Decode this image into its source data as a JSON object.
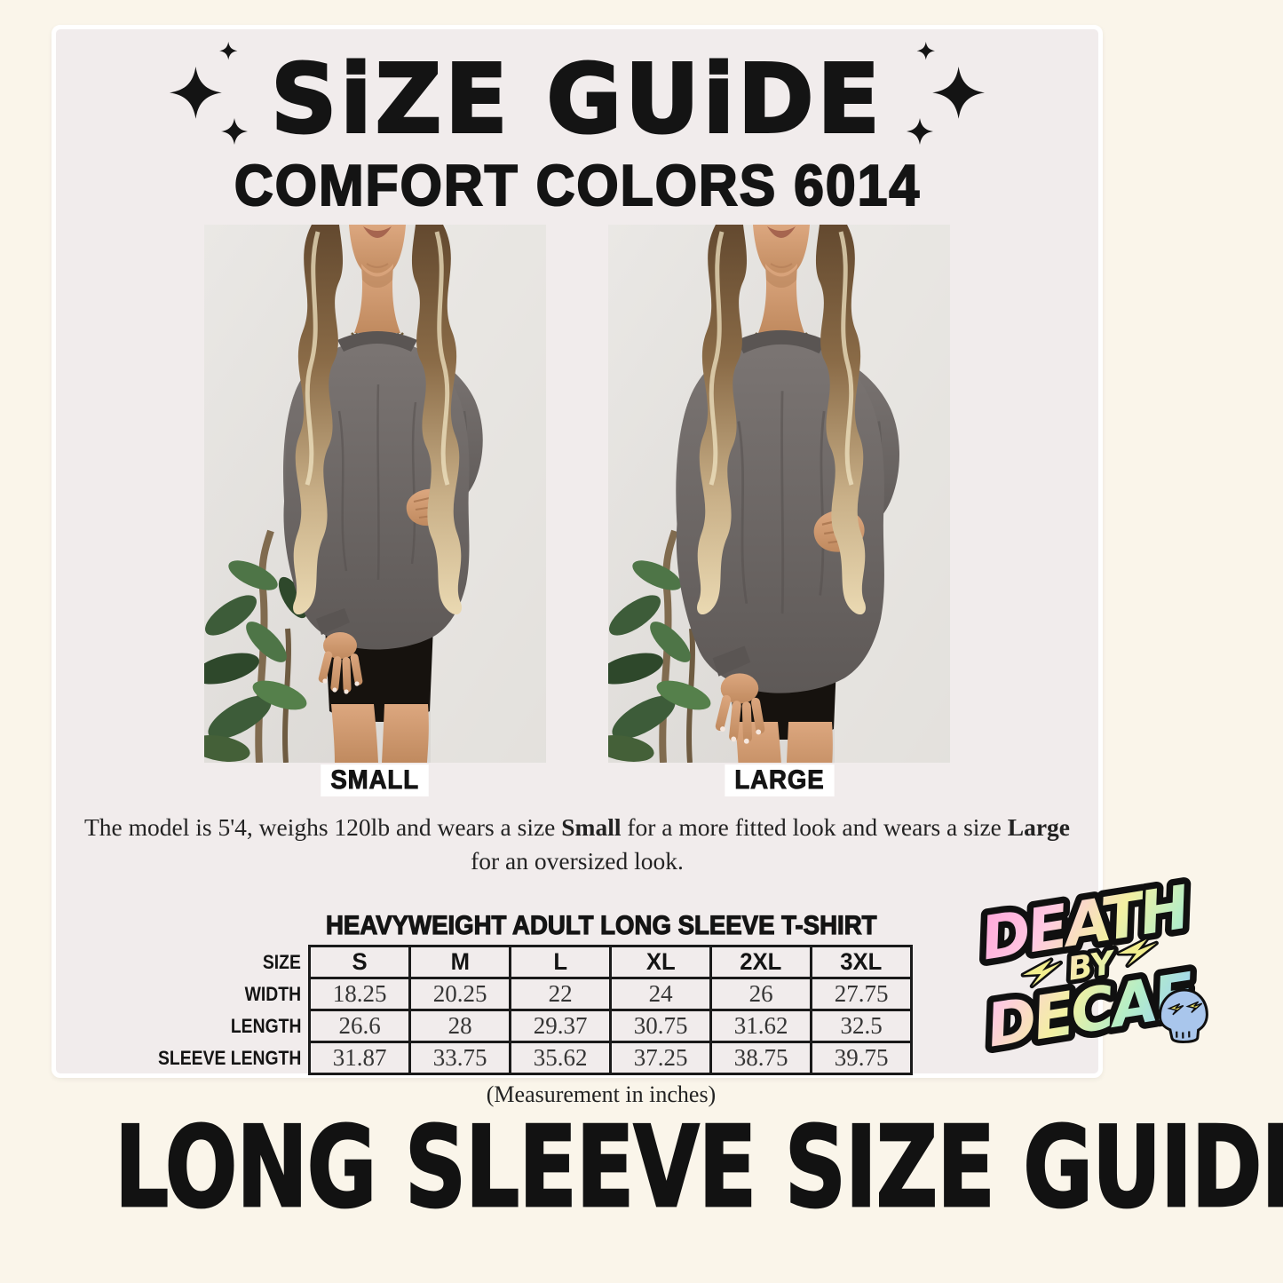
{
  "header": {
    "title": "SiZE GUiDE",
    "subtitle": "COMFORT COLORS 6014"
  },
  "photos": [
    {
      "label": "SMALL"
    },
    {
      "label": "LARGE"
    }
  ],
  "model_note": {
    "part1": "The model is 5'4, weighs 120lb and wears a size ",
    "bold_small": "Small",
    "part2": " for a more fitted look and wears a size ",
    "bold_large": "Large",
    "part3": " for an oversized look."
  },
  "size_table": {
    "heading": "HEAVYWEIGHT ADULT LONG SLEEVE T-SHIRT",
    "corner_label": "SIZE",
    "columns": [
      "S",
      "M",
      "L",
      "XL",
      "2XL",
      "3XL"
    ],
    "rows": [
      {
        "label": "WIDTH",
        "values": [
          "18.25",
          "20.25",
          "22",
          "24",
          "26",
          "27.75"
        ]
      },
      {
        "label": "LENGTH",
        "values": [
          "26.6",
          "28",
          "29.37",
          "30.75",
          "31.62",
          "32.5"
        ]
      },
      {
        "label": "SLEEVE LENGTH",
        "values": [
          "31.87",
          "33.75",
          "35.62",
          "37.25",
          "38.75",
          "39.75"
        ]
      }
    ],
    "note": "(Measurement in inches)"
  },
  "logo": {
    "word1": "DEATH",
    "word2": "BY",
    "word3": "DECAF"
  },
  "banner": {
    "text": "LONG SLEEVE SIZE GUIDE"
  },
  "colors": {
    "page_background": "#faf5ea",
    "card_background": "#f1ecec",
    "text_black": "#141414",
    "shirt_gray": "#6b6664",
    "logo_pink": "#ff96d5",
    "logo_yellow": "#f3f0a2",
    "logo_green": "#b5eec6",
    "logo_blue": "#9fd4f2",
    "skull_blue": "#a9c6ec"
  }
}
